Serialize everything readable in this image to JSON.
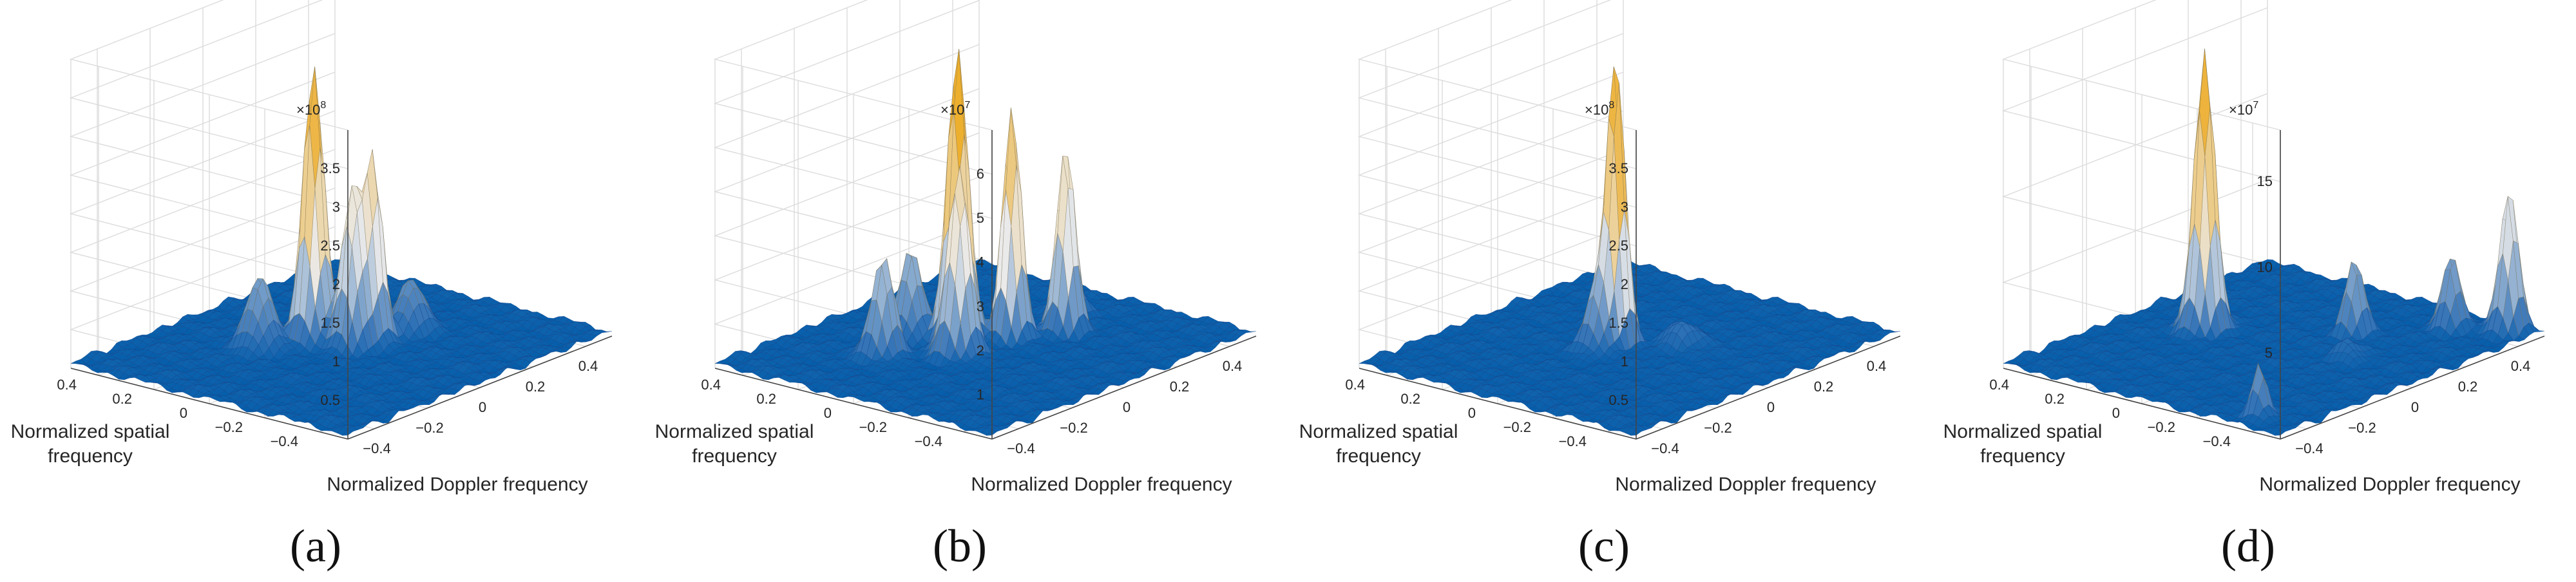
{
  "chart_data": [
    {
      "type": "surface",
      "panel_label": "(a)",
      "exponent_label": "×10",
      "exponent_power": "8",
      "z_ticks": [
        "0.5",
        "1",
        "1.5",
        "2",
        "2.5",
        "3",
        "3.5"
      ],
      "z_values": [
        0.5,
        1,
        1.5,
        2,
        2.5,
        3,
        3.5
      ],
      "zlim": [
        0,
        4
      ],
      "x_ticks": [
        "−0.4",
        "−0.2",
        "0",
        "0.2",
        "0.4"
      ],
      "y_ticks": [
        "0.4",
        "0.2",
        "0",
        "−0.2",
        "−0.4"
      ],
      "xlabel": "Normalized Doppler frequency",
      "ylabel_line1": "Normalized spatial",
      "ylabel_line2": "frequency",
      "peaks": [
        {
          "x": 0.0,
          "y": 0.1,
          "z": 3.6,
          "w": 0.028
        },
        {
          "x": 0.02,
          "y": -0.02,
          "z": 2.0,
          "w": 0.03
        },
        {
          "x": 0.08,
          "y": -0.04,
          "z": 2.2,
          "w": 0.025
        },
        {
          "x": -0.12,
          "y": 0.18,
          "z": 0.9,
          "w": 0.035
        },
        {
          "x": 0.2,
          "y": -0.06,
          "z": 0.7,
          "w": 0.035
        },
        {
          "x": -0.05,
          "y": 0.25,
          "z": 0.5,
          "w": 0.03
        }
      ]
    },
    {
      "type": "surface",
      "panel_label": "(b)",
      "exponent_label": "×10",
      "exponent_power": "7",
      "z_ticks": [
        "1",
        "2",
        "3",
        "4",
        "5",
        "6"
      ],
      "z_values": [
        1,
        2,
        3,
        4,
        5,
        6
      ],
      "zlim": [
        0,
        7
      ],
      "x_ticks": [
        "−0.4",
        "−0.2",
        "0",
        "0.2",
        "0.4"
      ],
      "y_ticks": [
        "0.4",
        "0.2",
        "0",
        "−0.2",
        "−0.4"
      ],
      "xlabel": "Normalized Doppler frequency",
      "ylabel_line1": "Normalized spatial",
      "ylabel_line2": "frequency",
      "peaks": [
        {
          "x": 0.0,
          "y": 0.1,
          "z": 6.7,
          "w": 0.028
        },
        {
          "x": 0.1,
          "y": 0.0,
          "z": 5.3,
          "w": 0.025
        },
        {
          "x": 0.22,
          "y": -0.08,
          "z": 4.3,
          "w": 0.025
        },
        {
          "x": -0.08,
          "y": 0.02,
          "z": 4.3,
          "w": 0.03
        },
        {
          "x": -0.2,
          "y": 0.18,
          "z": 2.3,
          "w": 0.03
        },
        {
          "x": -0.05,
          "y": 0.22,
          "z": 2.0,
          "w": 0.03
        },
        {
          "x": 0.32,
          "y": 0.0,
          "z": 0.9,
          "w": 0.03
        }
      ]
    },
    {
      "type": "surface",
      "panel_label": "(c)",
      "exponent_label": "×10",
      "exponent_power": "8",
      "z_ticks": [
        "0.5",
        "1",
        "1.5",
        "2",
        "2.5",
        "3",
        "3.5"
      ],
      "z_values": [
        0.5,
        1,
        1.5,
        2,
        2.5,
        3,
        3.5
      ],
      "zlim": [
        0,
        4
      ],
      "x_ticks": [
        "−0.4",
        "−0.2",
        "0",
        "0.2",
        "0.4"
      ],
      "y_ticks": [
        "0.4",
        "0.2",
        "0",
        "−0.2",
        "−0.4"
      ],
      "xlabel": "Normalized Doppler frequency",
      "ylabel_line1": "Normalized spatial",
      "ylabel_line2": "frequency",
      "peaks": [
        {
          "x": 0.0,
          "y": 0.05,
          "z": 3.7,
          "w": 0.025
        },
        {
          "x": -0.06,
          "y": 0.06,
          "z": 0.8,
          "w": 0.03
        },
        {
          "x": 0.1,
          "y": -0.1,
          "z": 0.3,
          "w": 0.04
        }
      ]
    },
    {
      "type": "surface",
      "panel_label": "(d)",
      "exponent_label": "×10",
      "exponent_power": "7",
      "z_ticks": [
        "5",
        "10",
        "15"
      ],
      "z_values": [
        5,
        10,
        15
      ],
      "zlim": [
        0,
        18
      ],
      "x_ticks": [
        "−0.4",
        "−0.2",
        "0",
        "0.2",
        "0.4"
      ],
      "y_ticks": [
        "0.4",
        "0.2",
        "0",
        "−0.2",
        "−0.4"
      ],
      "xlabel": "Normalized Doppler frequency",
      "ylabel_line1": "Normalized spatial",
      "ylabel_line2": "frequency",
      "peaks": [
        {
          "x": 0.0,
          "y": 0.25,
          "z": 16.5,
          "w": 0.028
        },
        {
          "x": 0.45,
          "y": -0.42,
          "z": 8.5,
          "w": 0.025
        },
        {
          "x": 0.38,
          "y": -0.28,
          "z": 4.5,
          "w": 0.025
        },
        {
          "x": 0.2,
          "y": -0.1,
          "z": 4.5,
          "w": 0.025
        },
        {
          "x": -0.42,
          "y": -0.35,
          "z": 3.0,
          "w": 0.02
        },
        {
          "x": 0.05,
          "y": -0.22,
          "z": 1.0,
          "w": 0.03
        }
      ]
    }
  ]
}
